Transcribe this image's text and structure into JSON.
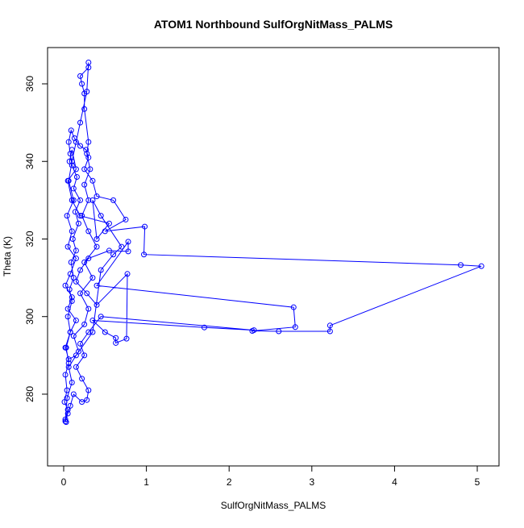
{
  "chart_data": {
    "type": "line",
    "title": "ATOM1 Northbound SulfOrgNitMass_PALMS",
    "x_label": "SulfOrgNitMass_PALMS",
    "y_label": "Theta (K)",
    "color": "#0000ff",
    "xlim": [
      -0.195,
      5.263
    ],
    "ylim": [
      261.5,
      369.35
    ],
    "xticks": [
      0,
      1,
      2,
      3,
      4,
      5
    ],
    "yticks": [
      280,
      300,
      320,
      340,
      360
    ],
    "x": [
      0.03,
      0.02,
      0.05,
      0.01,
      0.04,
      0.02,
      0.06,
      0.03,
      0.08,
      0.05,
      0.1,
      0.07,
      0.12,
      0.09,
      0.15,
      0.11,
      0.18,
      0.14,
      0.2,
      0.12,
      0.16,
      0.1,
      0.08,
      0.06,
      0.09,
      0.13,
      0.2,
      0.27,
      0.3,
      0.25,
      0.35,
      0.4,
      0.6,
      0.75,
      0.5,
      0.98,
      0.97,
      4.8,
      5.05,
      3.22,
      3.22,
      2.6,
      2.28,
      2.8,
      2.78,
      0.4,
      0.78,
      0.78,
      0.55,
      0.3,
      0.2,
      0.15,
      0.28,
      0.4,
      0.77,
      0.76,
      0.63,
      0.63,
      0.5,
      0.35,
      1.7,
      2.3,
      0.45,
      0.3,
      0.2,
      0.25,
      0.15,
      0.22,
      0.3,
      0.28,
      0.22,
      0.12,
      0.08,
      0.05,
      0.02,
      0.04,
      0.1,
      0.06,
      0.18,
      0.12,
      0.25,
      0.3,
      0.2,
      0.35,
      0.25,
      0.4,
      0.3,
      0.22,
      0.3,
      0.25,
      0.32,
      0.28,
      0.3,
      0.25,
      0.25,
      0.22,
      0.2,
      0.3,
      0.3,
      0.28,
      0.2,
      0.15,
      0.1,
      0.06,
      0.12,
      0.04,
      0.1,
      0.05,
      0.15,
      0.08,
      0.02,
      0.1,
      0.05,
      0.15,
      0.08,
      0.02,
      0.06,
      0.15,
      0.35,
      0.45,
      0.6,
      0.7,
      0.45,
      0.35,
      0.4,
      0.55,
      0.2,
      0.1,
      0.05,
      0.15,
      0.1,
      0.07
    ],
    "y": [
      272.8,
      273.5,
      276,
      278,
      281,
      285,
      288,
      292,
      296,
      300,
      304,
      307,
      310,
      314,
      317,
      320,
      324,
      327,
      330,
      333,
      336,
      339,
      342,
      345,
      348,
      346,
      344,
      343,
      341,
      338,
      335,
      331,
      330,
      325,
      322,
      323.2,
      316,
      313.3,
      313,
      297.7,
      296.2,
      296.2,
      296.3,
      297.3,
      302.4,
      308,
      319.3,
      316.8,
      317,
      315,
      312,
      309,
      306,
      303,
      311,
      294.3,
      293.2,
      294.5,
      296,
      299,
      297.2,
      296.5,
      300,
      296,
      293,
      290,
      287,
      284,
      281,
      278.5,
      278,
      280,
      277,
      275,
      273,
      279,
      283,
      287,
      291,
      295,
      298,
      302,
      306,
      310,
      314,
      318,
      322,
      326,
      330,
      334,
      338,
      342,
      345,
      353.5,
      357.5,
      360,
      362,
      364.2,
      365.5,
      358,
      350,
      345,
      340,
      335,
      330,
      326,
      322,
      318,
      315,
      311,
      308,
      305,
      302,
      299,
      296,
      292,
      289,
      290,
      296,
      312,
      316,
      318,
      326,
      330,
      320,
      324,
      326,
      330,
      335,
      338,
      343,
      340
    ]
  }
}
